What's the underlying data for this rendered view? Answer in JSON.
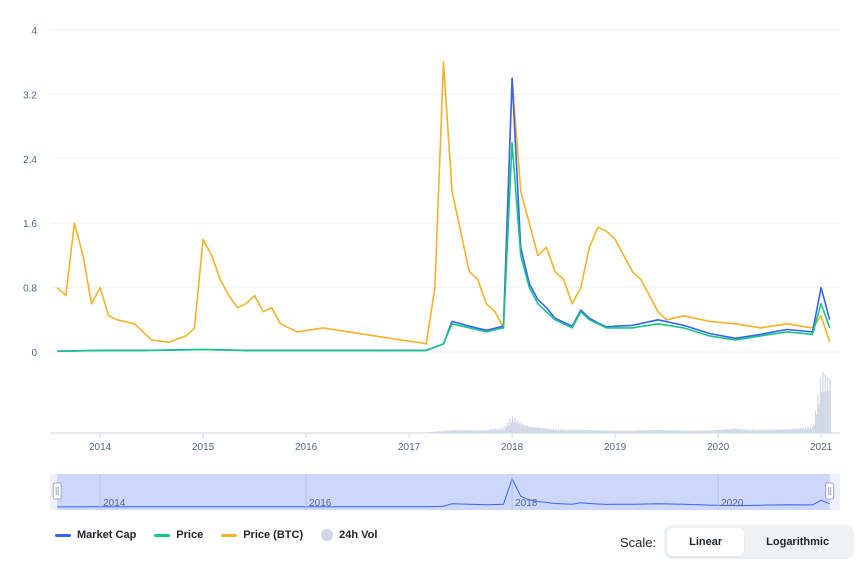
{
  "colors": {
    "market_cap": "#3861fb",
    "price": "#16c784",
    "price_btc": "#f5b228",
    "volume": "#cfd6e4",
    "navigator_fill": "#cdd7fa",
    "navigator_line": "#3861fb"
  },
  "chart_data": {
    "type": "line",
    "title": "",
    "x_range": [
      "2013-08",
      "2021-02"
    ],
    "y_range": [
      0,
      4
    ],
    "y_ticks": [
      "4",
      "3.2",
      "2.4",
      "1.6",
      "0.8",
      "0"
    ],
    "x_ticks": [
      "2014",
      "2015",
      "2016",
      "2017",
      "2018",
      "2019",
      "2020",
      "2021"
    ],
    "series": [
      {
        "name": "Price (BTC)",
        "x": [
          "2013-08",
          "2013-09",
          "2013-10",
          "2013-11",
          "2013-12",
          "2014-01",
          "2014-02",
          "2014-03",
          "2014-05",
          "2014-07",
          "2014-09",
          "2014-11",
          "2014-12",
          "2015-01",
          "2015-02",
          "2015-03",
          "2015-04",
          "2015-05",
          "2015-06",
          "2015-07",
          "2015-08",
          "2015-09",
          "2015-10",
          "2015-12",
          "2016-03",
          "2016-06",
          "2016-09",
          "2016-12",
          "2017-02",
          "2017-03",
          "2017-04",
          "2017-05",
          "2017-06",
          "2017-07",
          "2017-08",
          "2017-09",
          "2017-10",
          "2017-11",
          "2017-12",
          "2018-01",
          "2018-02",
          "2018-03",
          "2018-04",
          "2018-05",
          "2018-06",
          "2018-07",
          "2018-08",
          "2018-09",
          "2018-10",
          "2018-11",
          "2018-12",
          "2019-01",
          "2019-02",
          "2019-03",
          "2019-04",
          "2019-05",
          "2019-06",
          "2019-07",
          "2019-09",
          "2019-12",
          "2020-03",
          "2020-06",
          "2020-09",
          "2020-12",
          "2021-01",
          "2021-02"
        ],
        "values": [
          0.8,
          0.7,
          1.6,
          1.2,
          0.6,
          0.8,
          0.45,
          0.4,
          0.35,
          0.15,
          0.12,
          0.2,
          0.3,
          1.4,
          1.2,
          0.9,
          0.7,
          0.55,
          0.6,
          0.7,
          0.5,
          0.55,
          0.35,
          0.25,
          0.3,
          0.25,
          0.2,
          0.15,
          0.12,
          0.1,
          0.8,
          3.6,
          2.0,
          1.5,
          1.0,
          0.9,
          0.6,
          0.5,
          0.3,
          3.4,
          2.0,
          1.6,
          1.2,
          1.3,
          1.0,
          0.9,
          0.6,
          0.8,
          1.3,
          1.55,
          1.5,
          1.4,
          1.2,
          1.0,
          0.9,
          0.7,
          0.5,
          0.4,
          0.45,
          0.38,
          0.35,
          0.3,
          0.35,
          0.3,
          0.45,
          0.12
        ]
      },
      {
        "name": "Price",
        "x": [
          "2013-08",
          "2014-01",
          "2014-06",
          "2015-01",
          "2015-06",
          "2016-01",
          "2016-06",
          "2017-01",
          "2017-03",
          "2017-05",
          "2017-06",
          "2017-08",
          "2017-10",
          "2017-12",
          "2018-01",
          "2018-02",
          "2018-03",
          "2018-04",
          "2018-05",
          "2018-06",
          "2018-07",
          "2018-08",
          "2018-09",
          "2018-10",
          "2018-11",
          "2018-12",
          "2019-01",
          "2019-03",
          "2019-06",
          "2019-09",
          "2019-12",
          "2020-03",
          "2020-06",
          "2020-09",
          "2020-12",
          "2021-01",
          "2021-02"
        ],
        "values": [
          0.01,
          0.02,
          0.02,
          0.03,
          0.02,
          0.02,
          0.02,
          0.02,
          0.02,
          0.1,
          0.35,
          0.3,
          0.25,
          0.3,
          2.6,
          1.2,
          0.8,
          0.6,
          0.5,
          0.4,
          0.35,
          0.3,
          0.5,
          0.4,
          0.35,
          0.3,
          0.3,
          0.3,
          0.35,
          0.3,
          0.2,
          0.15,
          0.2,
          0.25,
          0.22,
          0.6,
          0.3
        ]
      },
      {
        "name": "Market Cap",
        "x": [
          "2013-08",
          "2014-01",
          "2014-06",
          "2015-01",
          "2015-06",
          "2016-01",
          "2016-06",
          "2017-01",
          "2017-03",
          "2017-05",
          "2017-06",
          "2017-08",
          "2017-10",
          "2017-12",
          "2018-01",
          "2018-02",
          "2018-03",
          "2018-04",
          "2018-05",
          "2018-06",
          "2018-07",
          "2018-08",
          "2018-09",
          "2018-10",
          "2018-11",
          "2018-12",
          "2019-01",
          "2019-03",
          "2019-06",
          "2019-09",
          "2019-12",
          "2020-03",
          "2020-06",
          "2020-09",
          "2020-12",
          "2021-01",
          "2021-02"
        ],
        "values": [
          0.01,
          0.02,
          0.02,
          0.03,
          0.02,
          0.02,
          0.02,
          0.02,
          0.02,
          0.1,
          0.38,
          0.32,
          0.27,
          0.32,
          3.4,
          1.3,
          0.85,
          0.65,
          0.55,
          0.42,
          0.37,
          0.32,
          0.52,
          0.42,
          0.36,
          0.31,
          0.32,
          0.33,
          0.4,
          0.33,
          0.23,
          0.17,
          0.22,
          0.28,
          0.25,
          0.8,
          0.4
        ]
      }
    ],
    "volume": {
      "name": "24h Vol",
      "x": [
        "2013-08",
        "2014-06",
        "2015-06",
        "2016-06",
        "2017-03",
        "2017-06",
        "2017-09",
        "2017-12",
        "2018-01",
        "2018-02",
        "2018-03",
        "2018-06",
        "2018-09",
        "2018-12",
        "2019-03",
        "2019-06",
        "2019-09",
        "2019-12",
        "2020-03",
        "2020-06",
        "2020-09",
        "2020-12",
        "2021-01",
        "2021-02"
      ],
      "values": [
        0.0,
        0.0,
        0.0,
        0.0,
        0.01,
        0.05,
        0.04,
        0.08,
        0.25,
        0.15,
        0.1,
        0.06,
        0.05,
        0.04,
        0.04,
        0.05,
        0.04,
        0.04,
        0.07,
        0.05,
        0.06,
        0.1,
        0.9,
        0.8
      ]
    },
    "navigator": {
      "x_ticks": [
        "2014",
        "2016",
        "2018",
        "2020"
      ],
      "selected_range": [
        "2013-08",
        "2021-02"
      ]
    },
    "legend": [
      "Market Cap",
      "Price",
      "Price (BTC)",
      "24h Vol"
    ],
    "legend_position": "bottom-left",
    "grid": true
  },
  "controls": {
    "scale_label": "Scale:",
    "linear_label": "Linear",
    "log_label": "Logarithmic",
    "selected": "Linear"
  }
}
